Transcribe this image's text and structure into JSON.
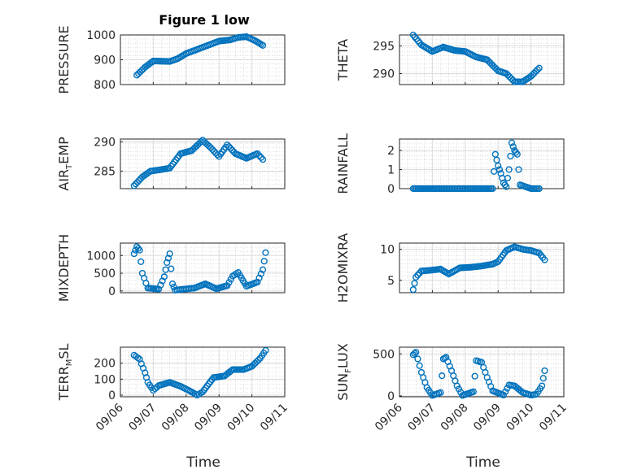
{
  "figure": {
    "title": "Figure 1 low",
    "xlabel": "Time",
    "marker_color": "#0072BD"
  },
  "chart_data": [
    {
      "type": "scatter",
      "ylabel": "PRESSURE",
      "ylim": [
        800,
        1000
      ],
      "yticks": [
        800,
        900,
        1000
      ],
      "grid": true,
      "x": [
        "09/06 12:00",
        "09/06 18:00",
        "09/07 00:00",
        "09/07 12:00",
        "09/07 18:00",
        "09/08 00:00",
        "09/08 12:00",
        "09/09 00:00",
        "09/09 08:00",
        "09/09 14:00",
        "09/09 20:00",
        "09/10 02:00",
        "09/10 08:00"
      ],
      "y": [
        838,
        870,
        895,
        893,
        905,
        925,
        950,
        975,
        980,
        990,
        993,
        978,
        958
      ]
    },
    {
      "type": "scatter",
      "ylabel": "THETA",
      "ylim": [
        288,
        297
      ],
      "yticks": [
        290,
        295
      ],
      "grid": true,
      "x": [
        "09/06 10:00",
        "09/06 16:00",
        "09/07 00:00",
        "09/07 08:00",
        "09/07 16:00",
        "09/08 00:00",
        "09/08 08:00",
        "09/08 16:00",
        "09/09 00:00",
        "09/09 06:00",
        "09/09 12:00",
        "09/09 18:00",
        "09/10 00:00",
        "09/10 06:00"
      ],
      "y": [
        297,
        295.2,
        294,
        294.8,
        294.2,
        294,
        293,
        292.5,
        290.5,
        290,
        288.5,
        288.5,
        289.5,
        291
      ]
    },
    {
      "type": "scatter",
      "ylabel": "AIR_TEMP",
      "ylim": [
        282,
        290.5
      ],
      "yticks": [
        285,
        290
      ],
      "grid": true,
      "x": [
        "09/06 10:00",
        "09/06 16:00",
        "09/06 22:00",
        "09/07 04:00",
        "09/07 12:00",
        "09/07 20:00",
        "09/08 04:00",
        "09/08 12:00",
        "09/08 18:00",
        "09/09 00:00",
        "09/09 06:00",
        "09/09 12:00",
        "09/09 20:00",
        "09/10 04:00",
        "09/10 08:00"
      ],
      "y": [
        282.5,
        284,
        285,
        285.2,
        285.5,
        288,
        288.5,
        290.3,
        289,
        287.5,
        289.5,
        288,
        287.2,
        288,
        287
      ]
    },
    {
      "type": "scatter",
      "ylabel": "RAINFALL",
      "ylim": [
        0,
        2.6
      ],
      "yticks": [
        0,
        1,
        2
      ],
      "grid": true,
      "x": [
        "09/06 10:00",
        "09/07 00:00",
        "09/08 00:00",
        "09/08 20:00",
        "09/08 22:00",
        "09/09 00:00",
        "09/09 02:00",
        "09/09 04:00",
        "09/09 06:00",
        "09/09 08:00",
        "09/09 10:00",
        "09/09 12:00",
        "09/09 14:00",
        "09/09 16:00",
        "09/10 00:00",
        "09/10 06:00"
      ],
      "y": [
        0,
        0,
        0,
        0,
        1.8,
        1.2,
        0.8,
        0.3,
        0.1,
        1.0,
        2.4,
        2.0,
        1.8,
        0.2,
        0,
        0
      ]
    },
    {
      "type": "scatter",
      "ylabel": "MIXDEPTH",
      "ylim": [
        -50,
        1350
      ],
      "yticks": [
        0,
        500,
        1000
      ],
      "grid": true,
      "x": [
        "09/06 10:00",
        "09/06 12:00",
        "09/06 14:00",
        "09/06 16:00",
        "09/06 20:00",
        "09/07 04:00",
        "09/07 08:00",
        "09/07 10:00",
        "09/07 12:00",
        "09/07 14:00",
        "09/07 16:00",
        "09/07 20:00",
        "09/08 06:00",
        "09/08 14:00",
        "09/08 22:00",
        "09/09 06:00",
        "09/09 10:00",
        "09/09 14:00",
        "09/09 20:00",
        "09/10 04:00",
        "09/10 08:00",
        "09/10 10:00"
      ],
      "y": [
        1050,
        1250,
        1150,
        500,
        80,
        50,
        400,
        800,
        1050,
        200,
        20,
        40,
        80,
        200,
        60,
        150,
        420,
        520,
        130,
        250,
        600,
        1080
      ]
    },
    {
      "type": "scatter",
      "ylabel": "H2OMIXRA",
      "ylim": [
        3,
        11
      ],
      "yticks": [
        5,
        10
      ],
      "grid": true,
      "x": [
        "09/06 10:00",
        "09/06 12:00",
        "09/06 16:00",
        "09/06 22:00",
        "09/07 06:00",
        "09/07 12:00",
        "09/07 20:00",
        "09/08 04:00",
        "09/08 12:00",
        "09/08 20:00",
        "09/09 00:00",
        "09/09 06:00",
        "09/09 12:00",
        "09/09 18:00",
        "09/10 00:00",
        "09/10 06:00",
        "09/10 10:00"
      ],
      "y": [
        3.5,
        5.5,
        6.5,
        6.6,
        6.8,
        6,
        7,
        7.1,
        7.3,
        7.6,
        8,
        9.8,
        10.4,
        10,
        9.8,
        9.4,
        8.3
      ]
    },
    {
      "type": "scatter",
      "ylabel": "TERR_MSL",
      "ylim": [
        -10,
        300
      ],
      "yticks": [
        0,
        100,
        200
      ],
      "grid": true,
      "x": [
        "09/06 10:00",
        "09/06 14:00",
        "09/06 18:00",
        "09/06 20:00",
        "09/07 00:00",
        "09/07 04:00",
        "09/07 12:00",
        "09/07 20:00",
        "09/08 04:00",
        "09/08 08:00",
        "09/08 12:00",
        "09/08 20:00",
        "09/09 04:00",
        "09/09 10:00",
        "09/09 18:00",
        "09/10 00:00",
        "09/10 06:00",
        "09/10 10:00"
      ],
      "y": [
        250,
        225,
        140,
        80,
        30,
        60,
        80,
        55,
        20,
        0,
        20,
        110,
        120,
        160,
        160,
        180,
        230,
        280
      ]
    },
    {
      "type": "scatter",
      "ylabel": "SUN_FLUX",
      "ylim": [
        -10,
        580
      ],
      "yticks": [
        0,
        500
      ],
      "grid": true,
      "x": [
        "09/06 10:00",
        "09/06 12:00",
        "09/06 16:00",
        "09/06 20:00",
        "09/07 00:00",
        "09/07 06:00",
        "09/07 08:00",
        "09/07 10:00",
        "09/07 14:00",
        "09/07 18:00",
        "09/07 22:00",
        "09/08 06:00",
        "09/08 08:00",
        "09/08 12:00",
        "09/08 16:00",
        "09/08 20:00",
        "09/09 04:00",
        "09/09 08:00",
        "09/09 12:00",
        "09/09 18:00",
        "09/10 00:00",
        "09/10 04:00",
        "09/10 08:00",
        "09/10 10:00"
      ],
      "y": [
        490,
        520,
        280,
        100,
        5,
        40,
        440,
        460,
        300,
        120,
        5,
        50,
        420,
        400,
        220,
        60,
        10,
        130,
        120,
        40,
        10,
        20,
        120,
        300
      ]
    }
  ],
  "x_axis": {
    "range": [
      "09/06 00:00",
      "09/11 00:00"
    ],
    "ticks": [
      "09/06",
      "09/07",
      "09/08",
      "09/09",
      "09/10",
      "09/11"
    ]
  }
}
